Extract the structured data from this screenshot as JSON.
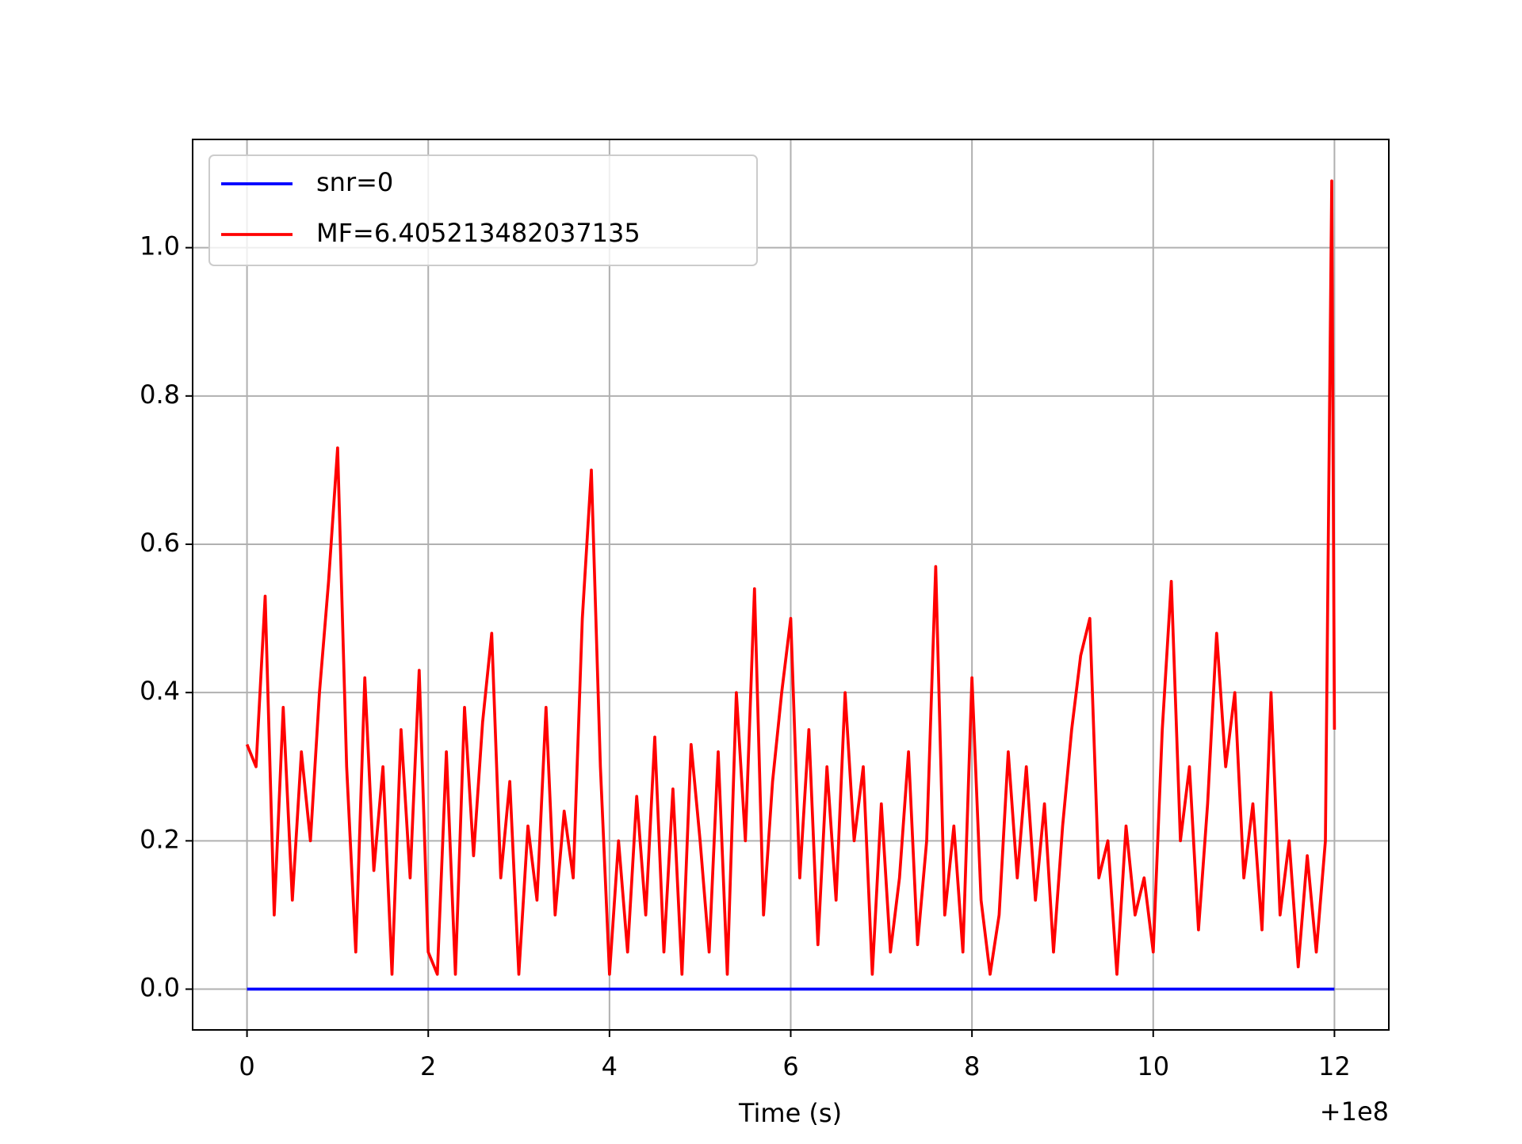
{
  "chart_data": {
    "type": "line",
    "xlabel": "Time (s)",
    "x_offset_label": "+1e8",
    "xlim": [
      -0.6,
      12.6
    ],
    "ylim": [
      -0.055,
      1.146
    ],
    "xticks": [
      0,
      2,
      4,
      6,
      8,
      10,
      12
    ],
    "yticks": [
      {
        "value": 0,
        "label": "0.0"
      },
      {
        "value": 0.2,
        "label": "0.2"
      },
      {
        "value": 0.4,
        "label": "0.4"
      },
      {
        "value": 0.6,
        "label": "0.6"
      },
      {
        "value": 0.8,
        "label": "0.8"
      },
      {
        "value": 1,
        "label": "1.0"
      }
    ],
    "grid": true,
    "legend": "upper left",
    "series": [
      {
        "name": "snr=0",
        "color": "#0000ff",
        "x": [
          0,
          12
        ],
        "values": [
          0,
          0
        ]
      },
      {
        "name": "MF=6.405213482037135",
        "color": "#ff0000",
        "x": [
          0,
          0.1,
          0.2,
          0.3,
          0.4,
          0.5,
          0.6,
          0.7,
          0.8,
          0.9,
          1,
          1.1,
          1.2,
          1.3,
          1.4,
          1.5,
          1.6,
          1.7,
          1.8,
          1.9,
          2,
          2.1,
          2.2,
          2.3,
          2.4,
          2.5,
          2.6,
          2.7,
          2.8,
          2.9,
          3,
          3.1,
          3.2,
          3.3,
          3.4,
          3.5,
          3.6,
          3.7,
          3.8,
          3.9,
          4,
          4.1,
          4.2,
          4.3,
          4.4,
          4.5,
          4.6,
          4.7,
          4.8,
          4.9,
          5,
          5.1,
          5.2,
          5.3,
          5.4,
          5.5,
          5.6,
          5.7,
          5.8,
          5.9,
          6,
          6.1,
          6.2,
          6.3,
          6.4,
          6.5,
          6.6,
          6.7,
          6.8,
          6.9,
          7,
          7.1,
          7.2,
          7.3,
          7.4,
          7.5,
          7.6,
          7.7,
          7.8,
          7.9,
          8,
          8.1,
          8.2,
          8.3,
          8.4,
          8.5,
          8.6,
          8.7,
          8.8,
          8.9,
          9,
          9.1,
          9.2,
          9.3,
          9.4,
          9.5,
          9.6,
          9.7,
          9.8,
          9.9,
          10,
          10.1,
          10.2,
          10.3,
          10.4,
          10.5,
          10.6,
          10.7,
          10.8,
          10.9,
          11,
          11.1,
          11.2,
          11.3,
          11.4,
          11.5,
          11.6,
          11.7,
          11.8,
          11.9,
          11.97,
          12
        ],
        "values": [
          0.33,
          0.3,
          0.53,
          0.1,
          0.38,
          0.12,
          0.32,
          0.2,
          0.4,
          0.55,
          0.73,
          0.3,
          0.05,
          0.42,
          0.16,
          0.3,
          0.02,
          0.35,
          0.15,
          0.43,
          0.05,
          0.02,
          0.32,
          0.02,
          0.38,
          0.18,
          0.36,
          0.48,
          0.15,
          0.28,
          0.02,
          0.22,
          0.12,
          0.38,
          0.1,
          0.24,
          0.15,
          0.5,
          0.7,
          0.3,
          0.02,
          0.2,
          0.05,
          0.26,
          0.1,
          0.34,
          0.05,
          0.27,
          0.02,
          0.33,
          0.2,
          0.05,
          0.32,
          0.02,
          0.4,
          0.2,
          0.54,
          0.1,
          0.28,
          0.4,
          0.5,
          0.15,
          0.35,
          0.06,
          0.3,
          0.12,
          0.4,
          0.2,
          0.3,
          0.02,
          0.25,
          0.05,
          0.15,
          0.32,
          0.06,
          0.2,
          0.57,
          0.1,
          0.22,
          0.05,
          0.42,
          0.12,
          0.02,
          0.1,
          0.32,
          0.15,
          0.3,
          0.12,
          0.25,
          0.05,
          0.22,
          0.35,
          0.45,
          0.5,
          0.15,
          0.2,
          0.02,
          0.22,
          0.1,
          0.15,
          0.05,
          0.35,
          0.55,
          0.2,
          0.3,
          0.08,
          0.25,
          0.48,
          0.3,
          0.4,
          0.15,
          0.25,
          0.08,
          0.4,
          0.1,
          0.2,
          0.03,
          0.18,
          0.05,
          0.2,
          1.09,
          0.35
        ]
      }
    ]
  }
}
